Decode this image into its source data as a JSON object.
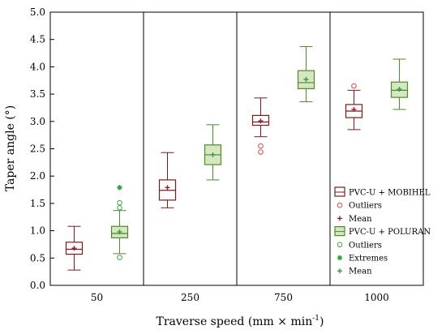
{
  "chart_data": {
    "type": "box",
    "xlabel": "Traverse speed (mm × min",
    "xlabel_sup": "-1",
    "xlabel_end": ")",
    "ylabel": "Taper angle (°)",
    "ylim": [
      0,
      5
    ],
    "yticks": [
      "0.0",
      "0.5",
      "1.0",
      "1.5",
      "2.0",
      "2.5",
      "3.0",
      "3.5",
      "4.0",
      "4.5",
      "5.0"
    ],
    "categories": [
      "50",
      "250",
      "750",
      "1000"
    ],
    "grid": false,
    "legend_position": "right",
    "series": [
      {
        "name": "PVC-U + MOBIHEL",
        "color": "#7a1a1a",
        "fill": "#ffffff",
        "outlier_color": "#c0504d",
        "mean_color": "#9b1b30",
        "boxes": [
          {
            "category": "50",
            "q1": 0.57,
            "median": 0.66,
            "q3": 0.79,
            "whisker_low": 0.28,
            "whisker_high": 1.08,
            "mean": 0.68,
            "outliers": [],
            "extremes": []
          },
          {
            "category": "250",
            "q1": 1.56,
            "median": 1.74,
            "q3": 1.93,
            "whisker_low": 1.42,
            "whisker_high": 2.43,
            "mean": 1.79,
            "outliers": [],
            "extremes": []
          },
          {
            "category": "750",
            "q1": 2.93,
            "median": 2.99,
            "q3": 3.11,
            "whisker_low": 2.72,
            "whisker_high": 3.43,
            "mean": 3.01,
            "outliers": [
              2.44,
              2.55
            ],
            "extremes": []
          },
          {
            "category": "1000",
            "q1": 3.07,
            "median": 3.19,
            "q3": 3.31,
            "whisker_low": 2.85,
            "whisker_high": 3.57,
            "mean": 3.22,
            "outliers": [
              3.65
            ],
            "extremes": []
          }
        ]
      },
      {
        "name": "PVC-U + POLURAN",
        "color": "#4d8a2a",
        "fill": "#d6e6c0",
        "outlier_color": "#3fa34a",
        "mean_color": "#2e9b3a",
        "boxes": [
          {
            "category": "50",
            "q1": 0.87,
            "median": 0.95,
            "q3": 1.08,
            "whisker_low": 0.58,
            "whisker_high": 1.37,
            "mean": 0.98,
            "outliers": [
              0.51,
              1.42,
              1.51
            ],
            "extremes": [
              1.79
            ]
          },
          {
            "category": "250",
            "q1": 2.21,
            "median": 2.39,
            "q3": 2.57,
            "whisker_low": 1.93,
            "whisker_high": 2.94,
            "mean": 2.39,
            "outliers": [],
            "extremes": []
          },
          {
            "category": "750",
            "q1": 3.6,
            "median": 3.71,
            "q3": 3.93,
            "whisker_low": 3.36,
            "whisker_high": 4.37,
            "mean": 3.77,
            "outliers": [],
            "extremes": []
          },
          {
            "category": "1000",
            "q1": 3.44,
            "median": 3.57,
            "q3": 3.72,
            "whisker_low": 3.22,
            "whisker_high": 4.14,
            "mean": 3.59,
            "outliers": [],
            "extremes": []
          }
        ]
      }
    ],
    "legend": [
      {
        "kind": "box",
        "label": "PVC-U + MOBIHEL",
        "color": "#7a1a1a",
        "fill": "#ffffff"
      },
      {
        "kind": "outlier",
        "label": "Outliers",
        "color": "#c0504d"
      },
      {
        "kind": "mean",
        "label": "Mean",
        "color": "#9b1b30"
      },
      {
        "kind": "box",
        "label": "PVC-U + POLURAN",
        "color": "#4d8a2a",
        "fill": "#d6e6c0"
      },
      {
        "kind": "outlier",
        "label": "Outliers",
        "color": "#3fa34a"
      },
      {
        "kind": "extreme",
        "label": "Extremes",
        "color": "#2e9b3a"
      },
      {
        "kind": "mean",
        "label": "Mean",
        "color": "#2e9b3a"
      }
    ]
  }
}
